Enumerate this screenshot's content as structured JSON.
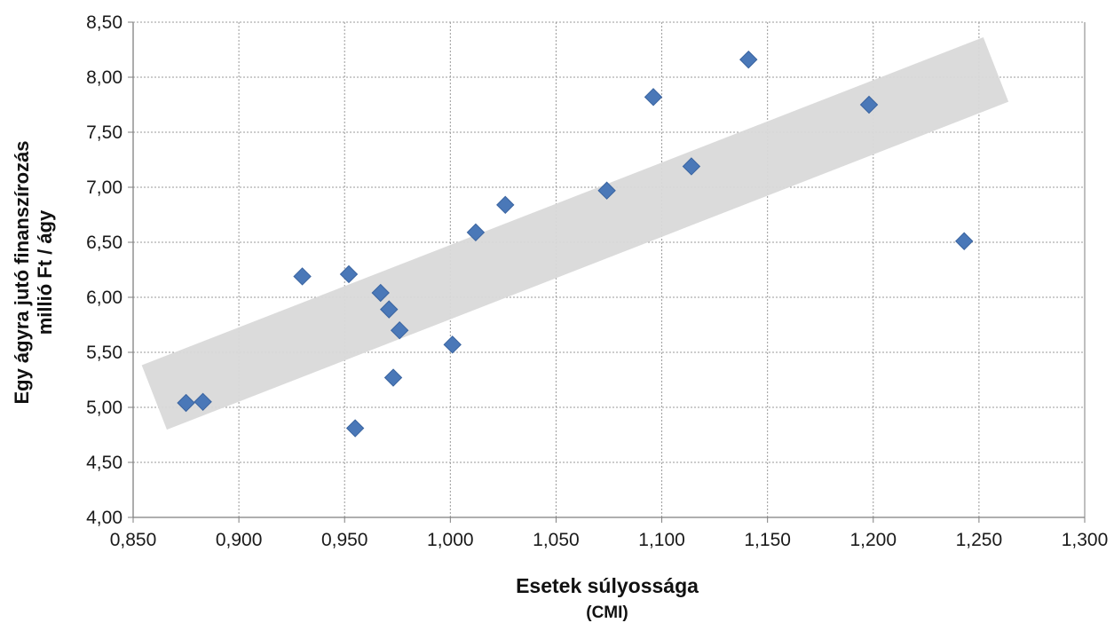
{
  "chart_data": {
    "type": "scatter",
    "title": "",
    "xlabel_line1": "Esetek súlyossága",
    "xlabel_line2": "(CMI)",
    "ylabel_line1": "Egy ágyra jutó finanszírozás",
    "ylabel_line2": "millió Ft / ágy",
    "xlim": [
      0.85,
      1.3
    ],
    "ylim": [
      4.0,
      8.5
    ],
    "x_ticks": [
      "0,850",
      "0,900",
      "0,950",
      "1,000",
      "1,050",
      "1,100",
      "1,150",
      "1,200",
      "1,250",
      "1,300"
    ],
    "y_ticks": [
      "4,00",
      "4,50",
      "5,00",
      "5,50",
      "6,00",
      "6,50",
      "7,00",
      "7,50",
      "8,00",
      "8,50"
    ],
    "grid": true,
    "marker": "diamond",
    "colors": {
      "marker": "#4a78b8",
      "marker_edge": "#3a64a0",
      "band": "#d9d9d9",
      "grid": "#9a9a9a"
    },
    "trend_band": {
      "from": [
        0.86,
        5.09
      ],
      "to": [
        1.258,
        8.07
      ]
    },
    "points": [
      {
        "x": 0.875,
        "y": 5.04
      },
      {
        "x": 0.883,
        "y": 5.05
      },
      {
        "x": 0.93,
        "y": 6.19
      },
      {
        "x": 0.952,
        "y": 6.21
      },
      {
        "x": 0.955,
        "y": 4.81
      },
      {
        "x": 0.967,
        "y": 6.04
      },
      {
        "x": 0.971,
        "y": 5.89
      },
      {
        "x": 0.973,
        "y": 5.27
      },
      {
        "x": 0.976,
        "y": 5.7
      },
      {
        "x": 1.001,
        "y": 5.57
      },
      {
        "x": 1.012,
        "y": 6.59
      },
      {
        "x": 1.026,
        "y": 6.84
      },
      {
        "x": 1.074,
        "y": 6.97
      },
      {
        "x": 1.096,
        "y": 7.82
      },
      {
        "x": 1.114,
        "y": 7.19
      },
      {
        "x": 1.141,
        "y": 8.16
      },
      {
        "x": 1.198,
        "y": 7.75
      },
      {
        "x": 1.243,
        "y": 6.51
      }
    ]
  }
}
